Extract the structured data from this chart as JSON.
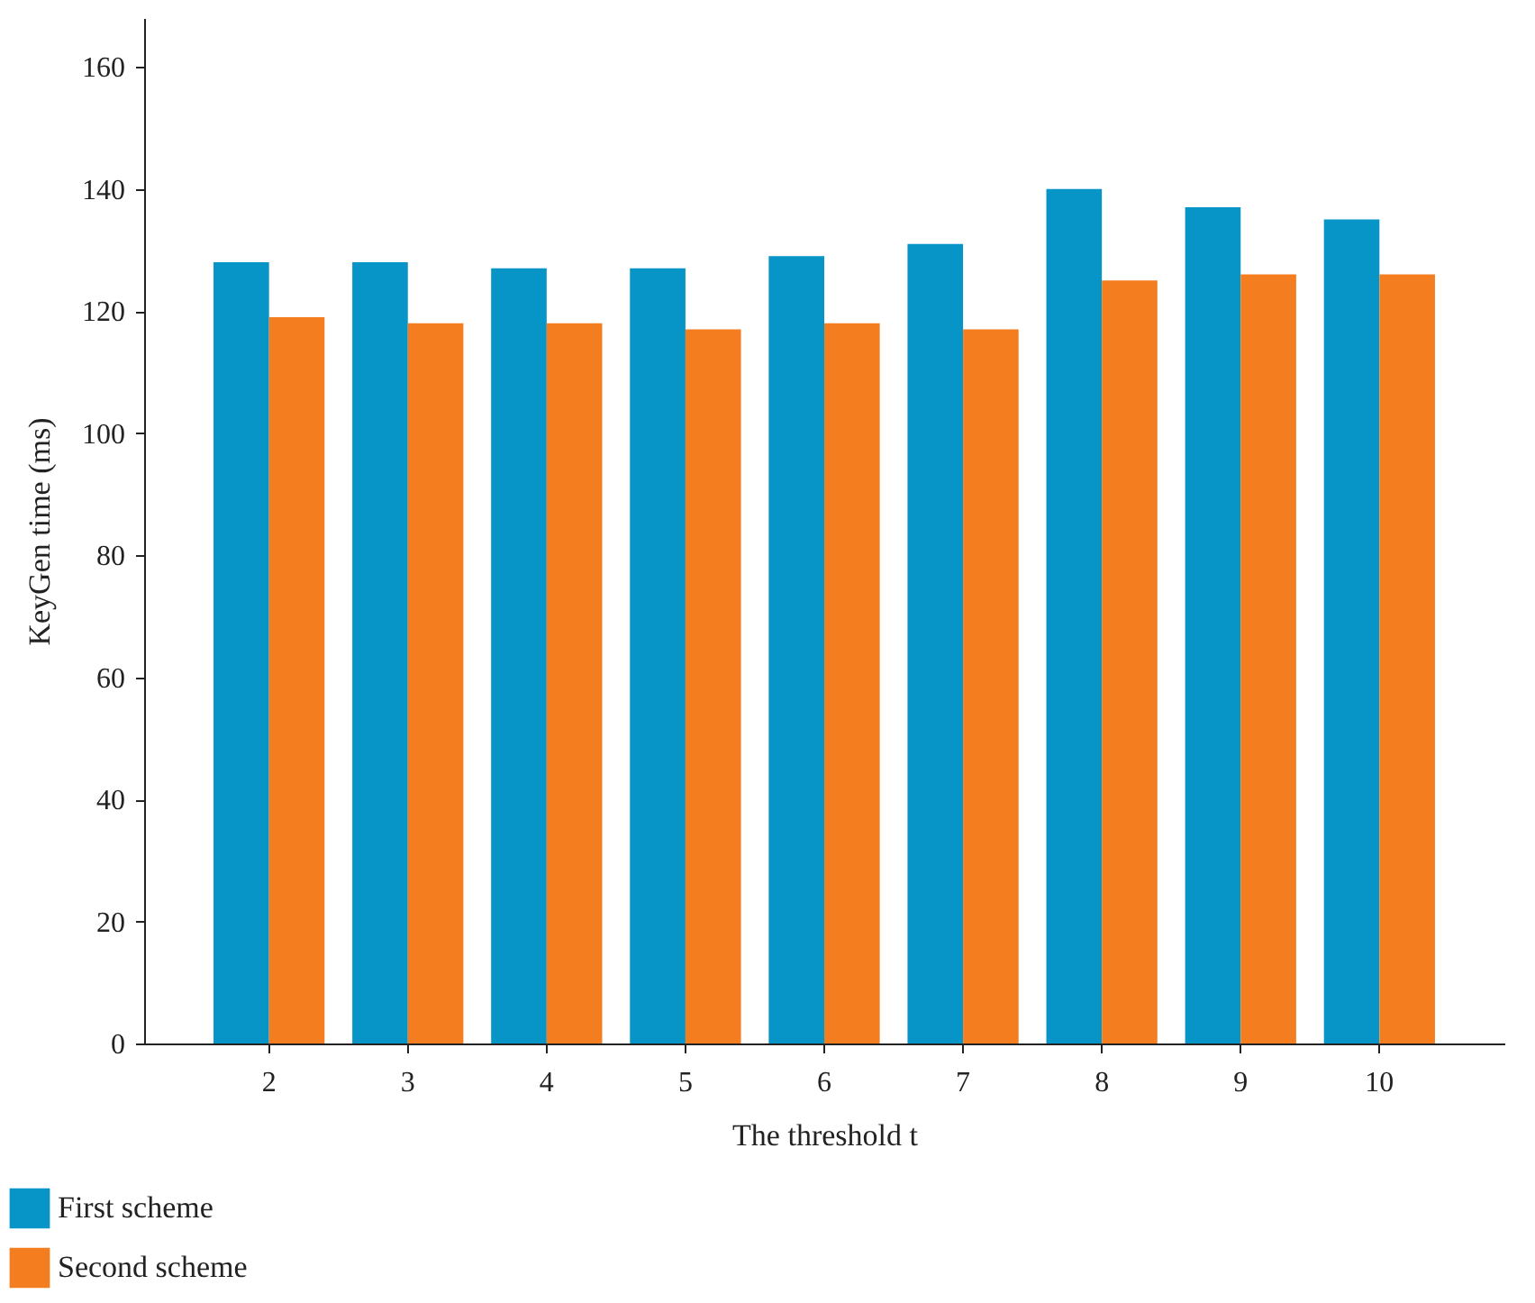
{
  "chart_data": {
    "type": "bar",
    "xlabel": "The threshold t",
    "ylabel": "KeyGen time (ms)",
    "categories": [
      "2",
      "3",
      "4",
      "5",
      "6",
      "7",
      "8",
      "9",
      "10"
    ],
    "series": [
      {
        "name": "First scheme",
        "color": "#0695c6",
        "values": [
          128,
          128,
          127,
          127,
          129,
          131,
          140,
          137,
          135
        ]
      },
      {
        "name": "Second scheme",
        "color": "#f47d20",
        "values": [
          119,
          118,
          118,
          117,
          118,
          117,
          125,
          126,
          126
        ]
      }
    ],
    "ylim": [
      0,
      168
    ],
    "yticks": [
      0,
      20,
      40,
      60,
      80,
      100,
      120,
      140,
      160
    ],
    "grid": false,
    "legend": "bottom left"
  }
}
